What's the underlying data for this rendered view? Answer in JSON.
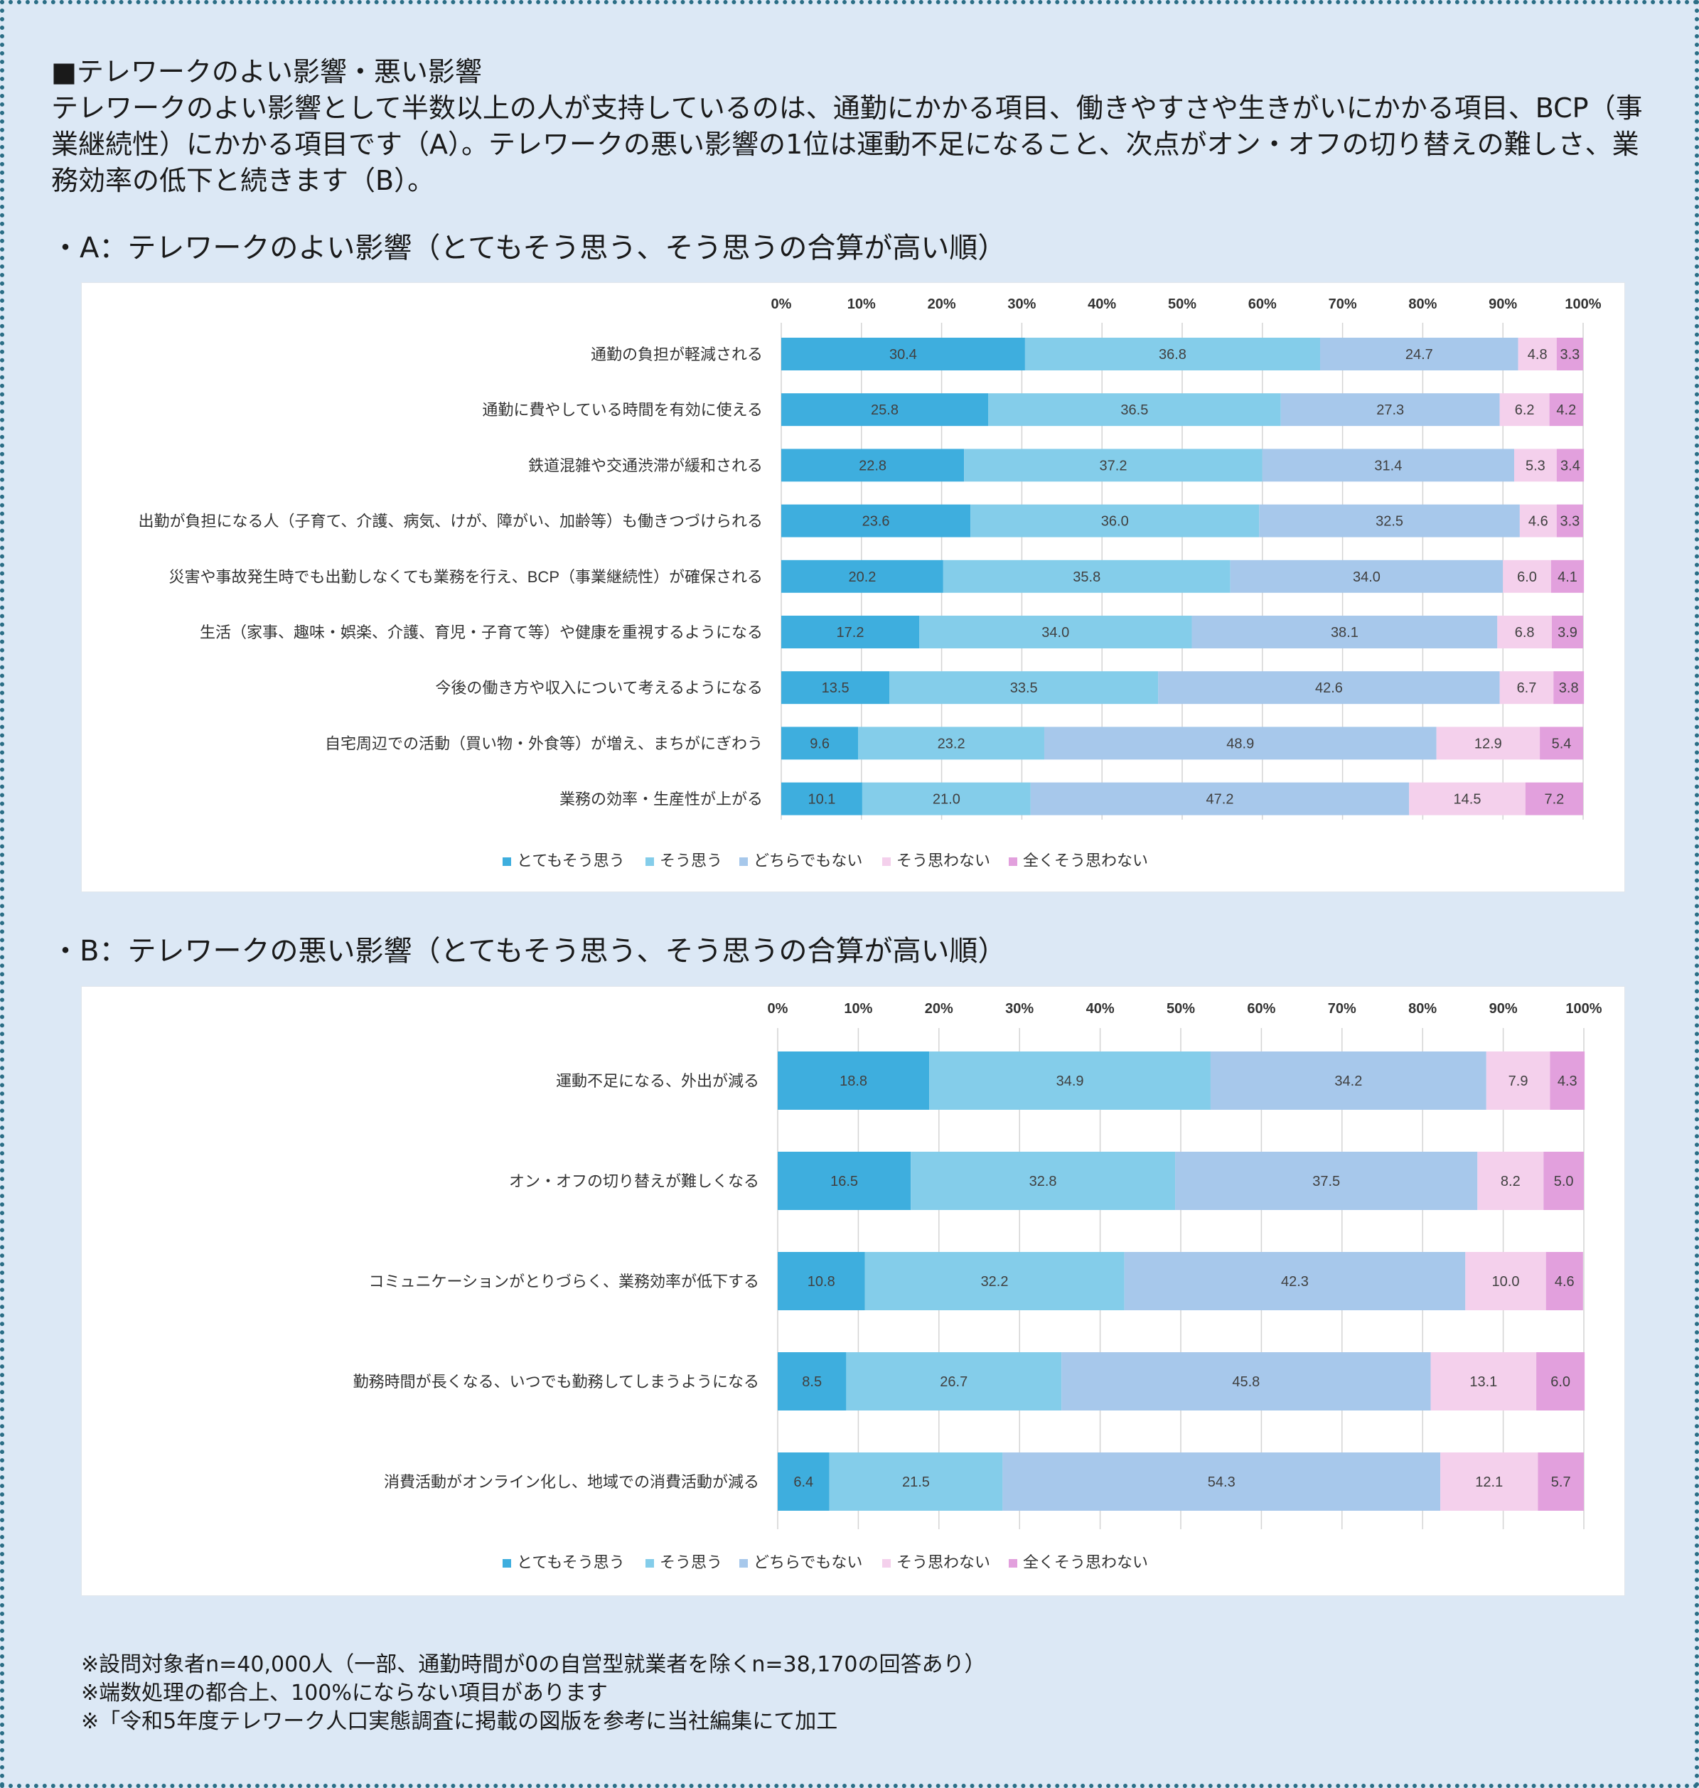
{
  "header": {
    "title": "■テレワークのよい影響・悪い影響",
    "description": "テレワークのよい影響として半数以上の人が支持しているのは、通勤にかかる項目、働きやすさや生きがいにかかる項目、BCP（事業継続性）にかかる項目です（A）。テレワークの悪い影響の1位は運動不足になること、次点がオン・オフの切り替えの難しさ、業務効率の低下と続きます（B）。"
  },
  "section_a": {
    "title": "・A：テレワークのよい影響（とてもそう思う、そう思うの合算が高い順）"
  },
  "section_b": {
    "title": "・B：テレワークの悪い影響（とてもそう思う、そう思うの合算が高い順）"
  },
  "notes": [
    "※設問対象者n=40,000人（一部、通勤時間が0の自営型就業者を除くn=38,170の回答あり）",
    "※端数処理の都合上、100%にならない項目があります",
    "※「令和5年度テレワーク人口実態調査に掲載の図版を参考に当社編集にて加工"
  ],
  "chart_data": [
    {
      "type": "bar",
      "orientation": "horizontal",
      "stacked": true,
      "title": "テレワークのよい影響",
      "xlim": [
        0,
        100
      ],
      "ticks": [
        "0%",
        "10%",
        "20%",
        "30%",
        "40%",
        "50%",
        "60%",
        "70%",
        "80%",
        "90%",
        "100%"
      ],
      "grid": true,
      "legend_position": "bottom",
      "categories": [
        "通勤の負担が軽減される",
        "通勤に費やしている時間を有効に使える",
        "鉄道混雑や交通渋滞が緩和される",
        "出勤が負担になる人（子育て、介護、病気、けが、障がい、加齢等）も働きつづけられる",
        "災害や事故発生時でも出勤しなくても業務を行え、BCP（事業継続性）が確保される",
        "生活（家事、趣味・娯楽、介護、育児・子育て等）や健康を重視するようになる",
        "今後の働き方や収入について考えるようになる",
        "自宅周辺での活動（買い物・外食等）が増え、まちがにぎわう",
        "業務の効率・生産性が上がる"
      ],
      "series": [
        {
          "name": "とてもそう思う",
          "color": "#3eaede",
          "values": [
            30.4,
            25.8,
            22.8,
            23.6,
            20.2,
            17.2,
            13.5,
            9.6,
            10.1
          ]
        },
        {
          "name": "そう思う",
          "color": "#84cdea",
          "values": [
            36.8,
            36.5,
            37.2,
            36.0,
            35.8,
            34.0,
            33.5,
            23.2,
            21.0
          ]
        },
        {
          "name": "どちらでもない",
          "color": "#a7c8eb",
          "values": [
            24.7,
            27.3,
            31.4,
            32.5,
            34.0,
            38.1,
            42.6,
            48.9,
            47.2
          ]
        },
        {
          "name": "そう思わない",
          "color": "#f4d0ec",
          "values": [
            4.8,
            6.2,
            5.3,
            4.6,
            6.0,
            6.8,
            6.7,
            12.9,
            14.5
          ]
        },
        {
          "name": "全くそう思わない",
          "color": "#e2a0dd",
          "values": [
            3.3,
            4.2,
            3.4,
            3.3,
            4.1,
            3.9,
            3.8,
            5.4,
            7.2
          ]
        }
      ]
    },
    {
      "type": "bar",
      "orientation": "horizontal",
      "stacked": true,
      "title": "テレワークの悪い影響",
      "xlim": [
        0,
        100
      ],
      "ticks": [
        "0%",
        "10%",
        "20%",
        "30%",
        "40%",
        "50%",
        "60%",
        "70%",
        "80%",
        "90%",
        "100%"
      ],
      "grid": true,
      "legend_position": "bottom",
      "categories": [
        "運動不足になる、外出が減る",
        "オン・オフの切り替えが難しくなる",
        "コミュニケーションがとりづらく、業務効率が低下する",
        "勤務時間が長くなる、いつでも勤務してしまうようになる",
        "消費活動がオンライン化し、地域での消費活動が減る"
      ],
      "series": [
        {
          "name": "とてもそう思う",
          "color": "#3eaede",
          "values": [
            18.8,
            16.5,
            10.8,
            8.5,
            6.4
          ]
        },
        {
          "name": "そう思う",
          "color": "#84cdea",
          "values": [
            34.9,
            32.8,
            32.2,
            26.7,
            21.5
          ]
        },
        {
          "name": "どちらでもない",
          "color": "#a7c8eb",
          "values": [
            34.2,
            37.5,
            42.3,
            45.8,
            54.3
          ]
        },
        {
          "name": "そう思わない",
          "color": "#f4d0ec",
          "values": [
            7.9,
            8.2,
            10.0,
            13.1,
            12.1
          ]
        },
        {
          "name": "全くそう思わない",
          "color": "#e2a0dd",
          "values": [
            4.3,
            5.0,
            4.6,
            6.0,
            5.7
          ]
        }
      ]
    }
  ]
}
